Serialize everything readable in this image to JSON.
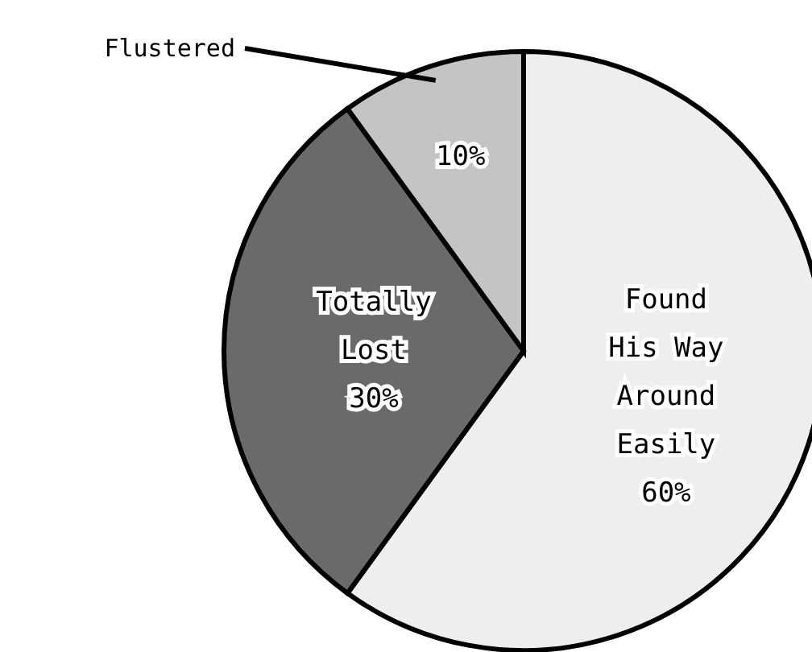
{
  "chart_data": {
    "type": "pie",
    "categories": [
      "Found His Way Around Easily",
      "Totally Lost",
      "Flustered"
    ],
    "values": [
      60,
      30,
      10
    ],
    "value_labels": [
      "60%",
      "30%",
      "10%"
    ],
    "colors": [
      "#eeeeee",
      "#6a6a6a",
      "#c4c4c4"
    ],
    "legend": false
  }
}
